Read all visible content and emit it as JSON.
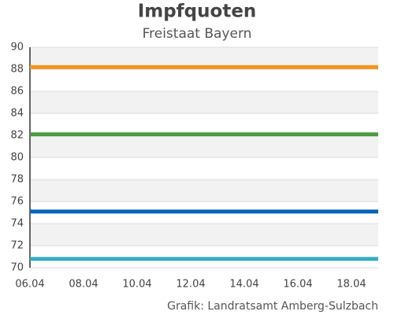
{
  "chart_data": {
    "type": "line",
    "title": "Impfquoten",
    "subtitle": "Freistaat Bayern",
    "credit": "Grafik: Landratsamt Amberg-Sulzbach",
    "categories": [
      "06.04",
      null,
      "08.04",
      null,
      "10.04",
      null,
      "12.04",
      null,
      "14.04",
      null,
      "16.04",
      null,
      "18.04",
      null
    ],
    "series": [
      {
        "color": "#f0951e",
        "values": [
          88.2,
          88.2,
          88.2,
          88.2,
          88.2,
          88.2,
          88.2,
          88.2,
          88.2,
          88.2,
          88.2,
          88.2,
          88.2,
          88.2
        ]
      },
      {
        "color": "#4c9b40",
        "values": [
          82.1,
          82.1,
          82.1,
          82.1,
          82.1,
          82.1,
          82.1,
          82.1,
          82.1,
          82.1,
          82.1,
          82.1,
          82.1,
          82.1
        ]
      },
      {
        "color": "#0b64c0",
        "values": [
          75.1,
          75.1,
          75.1,
          75.1,
          75.1,
          75.1,
          75.1,
          75.1,
          75.1,
          75.1,
          75.1,
          75.1,
          75.1,
          75.1
        ]
      },
      {
        "color": "#3aabc8",
        "values": [
          70.8,
          70.8,
          70.8,
          70.8,
          70.8,
          70.8,
          70.8,
          70.8,
          70.8,
          70.8,
          70.8,
          70.8,
          70.8,
          70.8
        ]
      }
    ],
    "ylim": [
      70,
      90
    ],
    "yticks": [
      70,
      72,
      74,
      76,
      78,
      80,
      82,
      84,
      86,
      88,
      90
    ],
    "grid": true
  }
}
